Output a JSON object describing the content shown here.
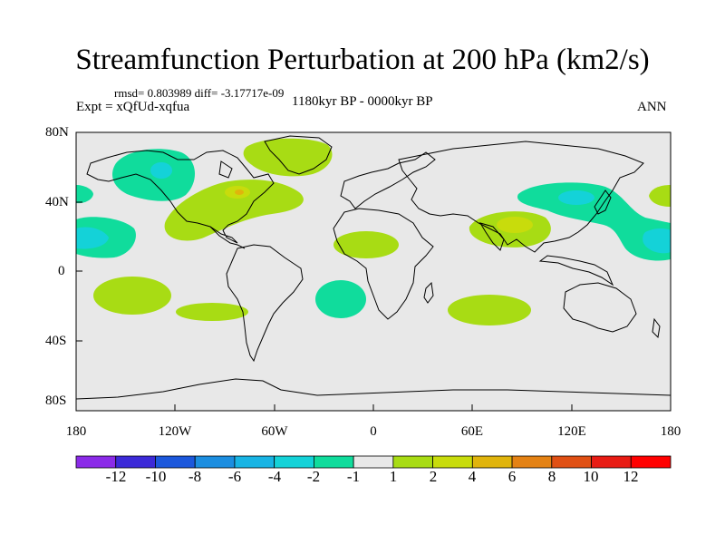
{
  "title": "Streamfunction Perturbation at 200 hPa (km2/s)",
  "stats": "rmsd= 0.803989 diff= -3.17717e-09",
  "experiment": "Expt = xQfUd-xqfua",
  "period": "1180kyr BP - 0000kyr BP",
  "season": "ANN",
  "axes": {
    "y_ticks": [
      "80N",
      "40N",
      "0",
      "40S",
      "80S"
    ],
    "x_ticks": [
      "180",
      "120W",
      "60W",
      "0",
      "60E",
      "120E",
      "180"
    ]
  },
  "colorbar": {
    "labels": [
      "-12",
      "-10",
      "-8",
      "-6",
      "-4",
      "-2",
      "-1",
      "1",
      "2",
      "4",
      "6",
      "8",
      "10",
      "12"
    ],
    "colors": [
      "#8b2be8",
      "#3c2ad8",
      "#1c58dc",
      "#1c8ee0",
      "#18b4e4",
      "#14d2d8",
      "#10dc9c",
      "#e8e8e8",
      "#a8dc14",
      "#c8dc0c",
      "#e0b40c",
      "#e48214",
      "#e05014",
      "#e81c14",
      "#ff0000"
    ]
  },
  "colors": {
    "background": "#e8e8e8",
    "coast": "#000000",
    "positive_low": "#a8dc14",
    "positive_mid": "#c8dc0c",
    "negative_low": "#10dc9c",
    "negative_mid": "#14d2d8",
    "negative_high": "#18b4e4"
  }
}
